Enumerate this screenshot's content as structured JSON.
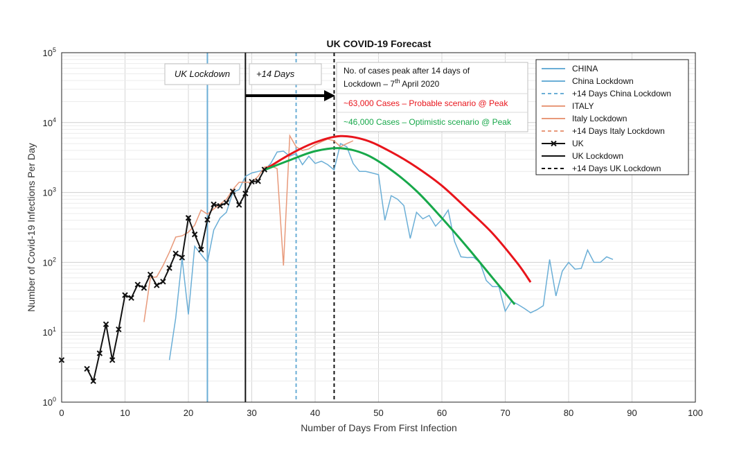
{
  "chart_data": {
    "type": "line",
    "title": "UK COVID-19 Forecast",
    "xlabel": "Number of Days From First Infection",
    "ylabel": "Number of Covid-19 Infections Per Day",
    "xlim": [
      0,
      100
    ],
    "ylim_log10": [
      0,
      5
    ],
    "y_scale": "log",
    "grid": true,
    "x_ticks": [
      0,
      10,
      20,
      30,
      40,
      50,
      60,
      70,
      80,
      90,
      100
    ],
    "y_ticks": [
      {
        "base": "10",
        "exp": "0"
      },
      {
        "base": "10",
        "exp": "1"
      },
      {
        "base": "10",
        "exp": "2"
      },
      {
        "base": "10",
        "exp": "3"
      },
      {
        "base": "10",
        "exp": "4"
      },
      {
        "base": "10",
        "exp": "5"
      }
    ],
    "colors": {
      "china": "#6aaed6",
      "italy": "#e8997a",
      "uk": "#111111",
      "probable": "#e8141b",
      "optimistic": "#17a84a"
    },
    "series": [
      {
        "name": "CHINA",
        "x": [
          17,
          18,
          19,
          20,
          21,
          22,
          23,
          24,
          25,
          26,
          27,
          28,
          29,
          30,
          31,
          32,
          33,
          34,
          35,
          36,
          37,
          38,
          39,
          40,
          41,
          42,
          43,
          44,
          45,
          46,
          47,
          48,
          49,
          50,
          51,
          52,
          53,
          54,
          55,
          56,
          57,
          58,
          59,
          60,
          61,
          62,
          63,
          64,
          65,
          66,
          67,
          68,
          69,
          70,
          71,
          72,
          73,
          74,
          75,
          76,
          77,
          78,
          79,
          80,
          81,
          82,
          83,
          84,
          85,
          86,
          87
        ],
        "y": [
          4,
          16,
          115,
          18,
          170,
          130,
          100,
          290,
          430,
          520,
          1000,
          1100,
          1700,
          1900,
          2000,
          2100,
          2600,
          3800,
          3900,
          3300,
          3600,
          2500,
          3300,
          2600,
          2800,
          2500,
          2100,
          5000,
          4500,
          2600,
          2000,
          2000,
          1900,
          1800,
          400,
          900,
          800,
          650,
          220,
          520,
          420,
          470,
          330,
          410,
          560,
          200,
          120,
          117,
          118,
          100,
          55,
          45,
          45,
          20,
          28,
          25,
          22,
          19,
          21,
          24,
          110,
          33,
          75,
          100,
          80,
          82,
          150,
          100,
          100,
          120,
          110
        ]
      },
      {
        "name": "ITALY",
        "x": [
          13,
          14,
          15,
          16,
          17,
          18,
          19,
          20,
          21,
          22,
          23,
          24,
          25,
          26,
          27,
          28,
          29,
          30,
          31,
          32,
          33,
          34,
          35,
          36,
          37,
          38,
          39,
          40,
          41,
          42,
          43,
          44,
          45,
          46
        ],
        "y": [
          14,
          60,
          62,
          90,
          140,
          230,
          240,
          270,
          340,
          560,
          490,
          580,
          680,
          800,
          1100,
          1400,
          1400,
          1400,
          1700,
          2300,
          2400,
          2200,
          90,
          6500,
          4500,
          4000,
          4200,
          4800,
          5300,
          5800,
          5500,
          4500,
          5000,
          5500
        ]
      },
      {
        "name": "UK",
        "x": [
          0,
          4,
          5,
          6,
          7,
          8,
          9,
          10,
          11,
          12,
          13,
          14,
          15,
          16,
          17,
          18,
          19,
          20,
          21,
          22,
          23,
          24,
          25,
          26,
          27,
          28,
          29,
          30,
          31,
          32
        ],
        "y": [
          4,
          3,
          2,
          5,
          13,
          4,
          11,
          34,
          31,
          48,
          43,
          67,
          47,
          53,
          83,
          134,
          117,
          433,
          251,
          152,
          407,
          676,
          643,
          714,
          1035,
          665,
          967,
          1427,
          1452,
          2129
        ]
      },
      {
        "name": "~63,000 Cases – Probable scenario @ Peak",
        "x": [
          32,
          36,
          40,
          44,
          48,
          52,
          56,
          60,
          64,
          68,
          72,
          74
        ],
        "y": [
          2100,
          3500,
          5200,
          6400,
          5600,
          3800,
          2300,
          1250,
          580,
          260,
          95,
          52
        ]
      },
      {
        "name": "~46,000 Cases – Optimistic scenario @ Peak",
        "x": [
          32,
          36,
          40,
          44,
          48,
          52,
          56,
          60,
          64,
          68,
          71.5
        ],
        "y": [
          2100,
          2900,
          3900,
          4300,
          3500,
          2100,
          1050,
          430,
          165,
          60,
          25
        ]
      }
    ],
    "vertical_lines": [
      {
        "name": "China Lockdown",
        "x": 23,
        "style": "solid",
        "color": "#6aaed6"
      },
      {
        "name": "+14 Days China Lockdown",
        "x": 37,
        "style": "dashed",
        "color": "#6aaed6"
      },
      {
        "name": "UK Lockdown",
        "x": 29,
        "style": "solid",
        "color": "#111111"
      },
      {
        "name": "+14 Days UK Lockdown",
        "x": 43,
        "style": "dashed",
        "color": "#111111"
      }
    ],
    "annotations": {
      "uk_lockdown_box": "UK Lockdown",
      "plus14_box": "+14 Days",
      "peak_note_line1": "No. of cases peak after 14 days of",
      "peak_note_line2_pre": "Lockdown – 7",
      "peak_note_sup": "th",
      "peak_note_line2_post": " April 2020",
      "probable_label": "~63,000 Cases – Probable scenario @ Peak",
      "optimistic_label": "~46,000 Cases – Optimistic scenario @ Peak"
    },
    "legend": {
      "position": "top-right",
      "entries": [
        {
          "label": "CHINA",
          "color": "#6aaed6",
          "style": "solid"
        },
        {
          "label": "China Lockdown",
          "color": "#6aaed6",
          "style": "solid"
        },
        {
          "label": "+14 Days China Lockdown",
          "color": "#6aaed6",
          "style": "dashed"
        },
        {
          "label": "ITALY",
          "color": "#e8997a",
          "style": "solid"
        },
        {
          "label": "Italy Lockdown",
          "color": "#e8997a",
          "style": "solid"
        },
        {
          "label": "+14 Days Italy Lockdown",
          "color": "#e8997a",
          "style": "dashed"
        },
        {
          "label": "UK",
          "color": "#111111",
          "style": "marker"
        },
        {
          "label": "UK Lockdown",
          "color": "#111111",
          "style": "solid"
        },
        {
          "label": "+14 Days UK Lockdown",
          "color": "#111111",
          "style": "dashed"
        }
      ]
    }
  }
}
